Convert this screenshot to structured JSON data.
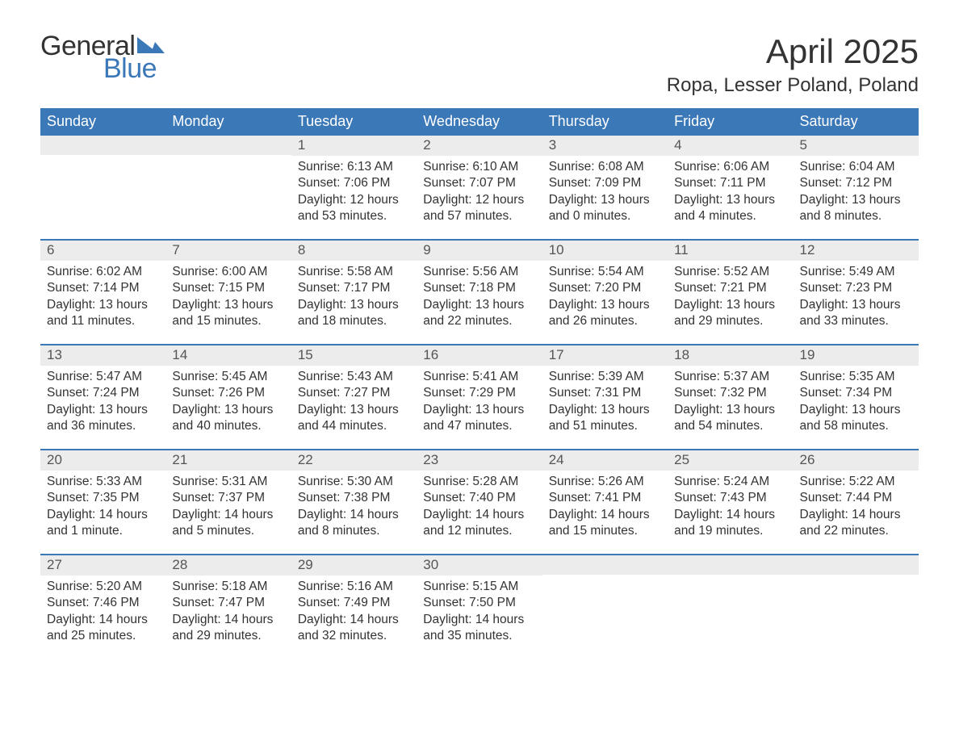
{
  "logo": {
    "word1": "General",
    "word2": "Blue",
    "flag_color": "#3b78b8"
  },
  "title": "April 2025",
  "location": "Ropa, Lesser Poland, Poland",
  "colors": {
    "header_bg": "#3b78b8",
    "header_text": "#ffffff",
    "daynum_bg": "#ececec",
    "daynum_text": "#555555",
    "body_text": "#333333",
    "week_border": "#3b78b8",
    "page_bg": "#ffffff"
  },
  "typography": {
    "title_fontsize": 42,
    "location_fontsize": 24,
    "dow_fontsize": 18,
    "daynum_fontsize": 17,
    "body_fontsize": 15.5
  },
  "days_of_week": [
    "Sunday",
    "Monday",
    "Tuesday",
    "Wednesday",
    "Thursday",
    "Friday",
    "Saturday"
  ],
  "weeks": [
    [
      {
        "n": "",
        "sunrise": "",
        "sunset": "",
        "daylight": ""
      },
      {
        "n": "",
        "sunrise": "",
        "sunset": "",
        "daylight": ""
      },
      {
        "n": "1",
        "sunrise": "Sunrise: 6:13 AM",
        "sunset": "Sunset: 7:06 PM",
        "daylight": "Daylight: 12 hours and 53 minutes."
      },
      {
        "n": "2",
        "sunrise": "Sunrise: 6:10 AM",
        "sunset": "Sunset: 7:07 PM",
        "daylight": "Daylight: 12 hours and 57 minutes."
      },
      {
        "n": "3",
        "sunrise": "Sunrise: 6:08 AM",
        "sunset": "Sunset: 7:09 PM",
        "daylight": "Daylight: 13 hours and 0 minutes."
      },
      {
        "n": "4",
        "sunrise": "Sunrise: 6:06 AM",
        "sunset": "Sunset: 7:11 PM",
        "daylight": "Daylight: 13 hours and 4 minutes."
      },
      {
        "n": "5",
        "sunrise": "Sunrise: 6:04 AM",
        "sunset": "Sunset: 7:12 PM",
        "daylight": "Daylight: 13 hours and 8 minutes."
      }
    ],
    [
      {
        "n": "6",
        "sunrise": "Sunrise: 6:02 AM",
        "sunset": "Sunset: 7:14 PM",
        "daylight": "Daylight: 13 hours and 11 minutes."
      },
      {
        "n": "7",
        "sunrise": "Sunrise: 6:00 AM",
        "sunset": "Sunset: 7:15 PM",
        "daylight": "Daylight: 13 hours and 15 minutes."
      },
      {
        "n": "8",
        "sunrise": "Sunrise: 5:58 AM",
        "sunset": "Sunset: 7:17 PM",
        "daylight": "Daylight: 13 hours and 18 minutes."
      },
      {
        "n": "9",
        "sunrise": "Sunrise: 5:56 AM",
        "sunset": "Sunset: 7:18 PM",
        "daylight": "Daylight: 13 hours and 22 minutes."
      },
      {
        "n": "10",
        "sunrise": "Sunrise: 5:54 AM",
        "sunset": "Sunset: 7:20 PM",
        "daylight": "Daylight: 13 hours and 26 minutes."
      },
      {
        "n": "11",
        "sunrise": "Sunrise: 5:52 AM",
        "sunset": "Sunset: 7:21 PM",
        "daylight": "Daylight: 13 hours and 29 minutes."
      },
      {
        "n": "12",
        "sunrise": "Sunrise: 5:49 AM",
        "sunset": "Sunset: 7:23 PM",
        "daylight": "Daylight: 13 hours and 33 minutes."
      }
    ],
    [
      {
        "n": "13",
        "sunrise": "Sunrise: 5:47 AM",
        "sunset": "Sunset: 7:24 PM",
        "daylight": "Daylight: 13 hours and 36 minutes."
      },
      {
        "n": "14",
        "sunrise": "Sunrise: 5:45 AM",
        "sunset": "Sunset: 7:26 PM",
        "daylight": "Daylight: 13 hours and 40 minutes."
      },
      {
        "n": "15",
        "sunrise": "Sunrise: 5:43 AM",
        "sunset": "Sunset: 7:27 PM",
        "daylight": "Daylight: 13 hours and 44 minutes."
      },
      {
        "n": "16",
        "sunrise": "Sunrise: 5:41 AM",
        "sunset": "Sunset: 7:29 PM",
        "daylight": "Daylight: 13 hours and 47 minutes."
      },
      {
        "n": "17",
        "sunrise": "Sunrise: 5:39 AM",
        "sunset": "Sunset: 7:31 PM",
        "daylight": "Daylight: 13 hours and 51 minutes."
      },
      {
        "n": "18",
        "sunrise": "Sunrise: 5:37 AM",
        "sunset": "Sunset: 7:32 PM",
        "daylight": "Daylight: 13 hours and 54 minutes."
      },
      {
        "n": "19",
        "sunrise": "Sunrise: 5:35 AM",
        "sunset": "Sunset: 7:34 PM",
        "daylight": "Daylight: 13 hours and 58 minutes."
      }
    ],
    [
      {
        "n": "20",
        "sunrise": "Sunrise: 5:33 AM",
        "sunset": "Sunset: 7:35 PM",
        "daylight": "Daylight: 14 hours and 1 minute."
      },
      {
        "n": "21",
        "sunrise": "Sunrise: 5:31 AM",
        "sunset": "Sunset: 7:37 PM",
        "daylight": "Daylight: 14 hours and 5 minutes."
      },
      {
        "n": "22",
        "sunrise": "Sunrise: 5:30 AM",
        "sunset": "Sunset: 7:38 PM",
        "daylight": "Daylight: 14 hours and 8 minutes."
      },
      {
        "n": "23",
        "sunrise": "Sunrise: 5:28 AM",
        "sunset": "Sunset: 7:40 PM",
        "daylight": "Daylight: 14 hours and 12 minutes."
      },
      {
        "n": "24",
        "sunrise": "Sunrise: 5:26 AM",
        "sunset": "Sunset: 7:41 PM",
        "daylight": "Daylight: 14 hours and 15 minutes."
      },
      {
        "n": "25",
        "sunrise": "Sunrise: 5:24 AM",
        "sunset": "Sunset: 7:43 PM",
        "daylight": "Daylight: 14 hours and 19 minutes."
      },
      {
        "n": "26",
        "sunrise": "Sunrise: 5:22 AM",
        "sunset": "Sunset: 7:44 PM",
        "daylight": "Daylight: 14 hours and 22 minutes."
      }
    ],
    [
      {
        "n": "27",
        "sunrise": "Sunrise: 5:20 AM",
        "sunset": "Sunset: 7:46 PM",
        "daylight": "Daylight: 14 hours and 25 minutes."
      },
      {
        "n": "28",
        "sunrise": "Sunrise: 5:18 AM",
        "sunset": "Sunset: 7:47 PM",
        "daylight": "Daylight: 14 hours and 29 minutes."
      },
      {
        "n": "29",
        "sunrise": "Sunrise: 5:16 AM",
        "sunset": "Sunset: 7:49 PM",
        "daylight": "Daylight: 14 hours and 32 minutes."
      },
      {
        "n": "30",
        "sunrise": "Sunrise: 5:15 AM",
        "sunset": "Sunset: 7:50 PM",
        "daylight": "Daylight: 14 hours and 35 minutes."
      },
      {
        "n": "",
        "sunrise": "",
        "sunset": "",
        "daylight": ""
      },
      {
        "n": "",
        "sunrise": "",
        "sunset": "",
        "daylight": ""
      },
      {
        "n": "",
        "sunrise": "",
        "sunset": "",
        "daylight": ""
      }
    ]
  ]
}
